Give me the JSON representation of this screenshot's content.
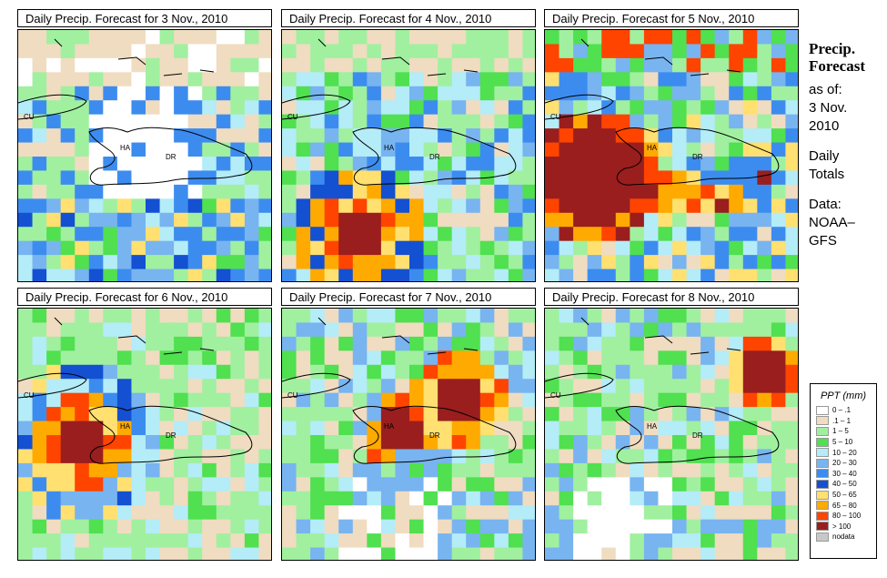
{
  "panels": [
    {
      "title": "Daily Precip. Forecast for  3 Nov., 2010"
    },
    {
      "title": "Daily Precip. Forecast for  4 Nov., 2010"
    },
    {
      "title": "Daily Precip. Forecast for  5 Nov., 2010"
    },
    {
      "title": "Daily Precip. Forecast for  6 Nov., 2010"
    },
    {
      "title": "Daily Precip. Forecast for  7 Nov., 2010"
    },
    {
      "title": "Daily Precip. Forecast for  8 Nov., 2010"
    }
  ],
  "map_labels": {
    "cu": "CU",
    "ha": "HA",
    "dr": "DR"
  },
  "sidebar": {
    "title_line1": "Precip.",
    "title_line2": "Forecast",
    "asof": "as of:",
    "date_line1": "3 Nov.",
    "date_line2": "2010",
    "totals_line1": "Daily",
    "totals_line2": "Totals",
    "data_line1": "Data:",
    "data_line2": "NOAA–",
    "data_line3": "GFS"
  },
  "legend": {
    "title": "PPT (mm)",
    "items": [
      {
        "label": "0 – .1",
        "color": "#ffffff"
      },
      {
        "label": ".1 – 1",
        "color": "#f0dcc0"
      },
      {
        "label": "1 – 5",
        "color": "#a0f0a0"
      },
      {
        "label": "5 – 10",
        "color": "#50e050"
      },
      {
        "label": "10 – 20",
        "color": "#b4ecf8"
      },
      {
        "label": "20 – 30",
        "color": "#78b4f0"
      },
      {
        "label": "30 – 40",
        "color": "#3c8cf0"
      },
      {
        "label": "40 – 50",
        "color": "#1450d2"
      },
      {
        "label": "50 – 65",
        "color": "#ffe070"
      },
      {
        "label": "65 – 80",
        "color": "#ffaa00"
      },
      {
        "label": "80 – 100",
        "color": "#ff4400"
      },
      {
        "label": "> 100",
        "color": "#9a1e1e"
      },
      {
        "label": "nodata",
        "color": "#c8c8c8"
      }
    ]
  }
}
